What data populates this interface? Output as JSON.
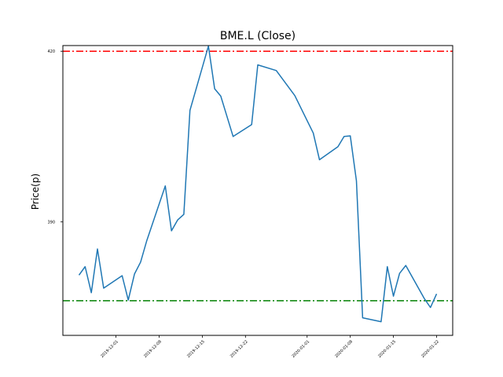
{
  "chart_data": {
    "type": "line",
    "title": "BME.L (Close)",
    "xlabel": "",
    "ylabel": "Price(p)",
    "grid": false,
    "x_ticks": [
      "2019-12-01",
      "2019-12-08",
      "2019-12-15",
      "2019-12-22",
      "2020-01-01",
      "2020-01-08",
      "2020-01-15",
      "2020-01-22"
    ],
    "y_ticks": [
      390,
      420
    ],
    "ylim": [
      370,
      421
    ],
    "series": [
      {
        "color": "#1f77b4",
        "points": [
          [
            "2019-11-25",
            380.6
          ],
          [
            "2019-11-26",
            382.1
          ],
          [
            "2019-11-27",
            377.5
          ],
          [
            "2019-11-28",
            385.2
          ],
          [
            "2019-11-29",
            378.3
          ],
          [
            "2019-12-02",
            380.5
          ],
          [
            "2019-12-03",
            376.2
          ],
          [
            "2019-12-04",
            380.8
          ],
          [
            "2019-12-05",
            382.9
          ],
          [
            "2019-12-06",
            386.7
          ],
          [
            "2019-12-09",
            396.3
          ],
          [
            "2019-12-10",
            388.4
          ],
          [
            "2019-12-11",
            390.3
          ],
          [
            "2019-12-12",
            391.3
          ],
          [
            "2019-12-13",
            409.6
          ],
          [
            "2019-12-16",
            420.9
          ],
          [
            "2019-12-17",
            413.4
          ],
          [
            "2019-12-18",
            412.1
          ],
          [
            "2019-12-20",
            405.0
          ],
          [
            "2019-12-23",
            407.1
          ],
          [
            "2019-12-24",
            417.6
          ],
          [
            "2019-12-27",
            416.6
          ],
          [
            "2019-12-30",
            412.2
          ],
          [
            "2020-01-02",
            405.6
          ],
          [
            "2020-01-03",
            400.9
          ],
          [
            "2020-01-06",
            403.2
          ],
          [
            "2020-01-07",
            405.0
          ],
          [
            "2020-01-08",
            405.1
          ],
          [
            "2020-01-09",
            397.2
          ],
          [
            "2020-01-10",
            373.1
          ],
          [
            "2020-01-13",
            372.4
          ],
          [
            "2020-01-14",
            382.1
          ],
          [
            "2020-01-15",
            376.9
          ],
          [
            "2020-01-16",
            380.9
          ],
          [
            "2020-01-17",
            382.3
          ],
          [
            "2020-01-20",
            376.5
          ],
          [
            "2020-01-21",
            374.9
          ],
          [
            "2020-01-22",
            377.3
          ]
        ]
      }
    ],
    "hlines": [
      {
        "y": 420,
        "color": "#ff0000",
        "style": "dashdot"
      },
      {
        "y": 376.1,
        "color": "#008000",
        "style": "dashdot"
      }
    ]
  }
}
